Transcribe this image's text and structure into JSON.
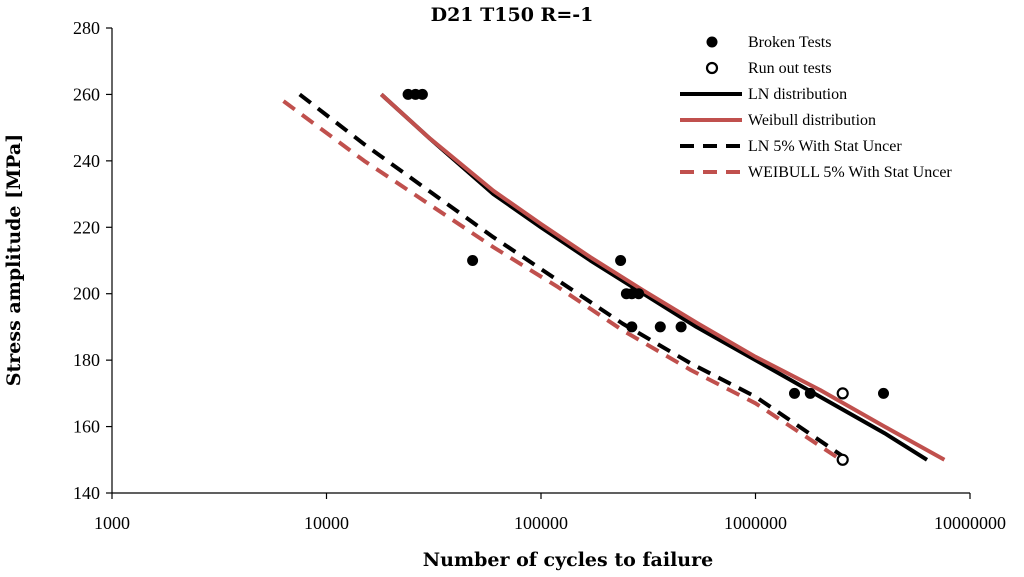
{
  "chart_data": {
    "type": "scatter",
    "title": "D21 T150 R=-1",
    "xlabel": "Number of cycles to failure",
    "ylabel": "Stress amplitude [MPa]",
    "xscale": "log",
    "xlim": [
      1000,
      10000000
    ],
    "ylim": [
      140,
      280
    ],
    "xticks": [
      1000,
      10000,
      100000,
      1000000,
      10000000
    ],
    "xtick_labels": [
      "1000",
      "10000",
      "100000",
      "1000000",
      "10000000"
    ],
    "yticks": [
      140,
      160,
      180,
      200,
      220,
      240,
      260,
      280
    ],
    "ytick_labels": [
      "140",
      "160",
      "180",
      "200",
      "220",
      "240",
      "260",
      "280"
    ],
    "grid": false,
    "legend_position": "top-right",
    "series": [
      {
        "name": "Broken Tests",
        "kind": "markers-filled",
        "color": "#000000",
        "points": [
          [
            24000,
            260
          ],
          [
            26000,
            260
          ],
          [
            28000,
            260
          ],
          [
            48000,
            210
          ],
          [
            235000,
            210
          ],
          [
            250000,
            200
          ],
          [
            265000,
            200
          ],
          [
            285000,
            200
          ],
          [
            265000,
            190
          ],
          [
            360000,
            190
          ],
          [
            450000,
            190
          ],
          [
            1520000,
            170
          ],
          [
            1800000,
            170
          ],
          [
            3950000,
            170
          ]
        ]
      },
      {
        "name": "Run out tests",
        "kind": "markers-open",
        "color": "#000000",
        "points": [
          [
            2550000,
            170
          ],
          [
            2550000,
            150
          ]
        ]
      },
      {
        "name": "LN distribution",
        "kind": "line-solid",
        "color": "#000000",
        "points": [
          [
            18000,
            260
          ],
          [
            30000,
            247
          ],
          [
            60000,
            230
          ],
          [
            100000,
            220
          ],
          [
            170000,
            210
          ],
          [
            300000,
            200
          ],
          [
            530000,
            190
          ],
          [
            1000000,
            180
          ],
          [
            2000000,
            169
          ],
          [
            4000000,
            158
          ],
          [
            6300000,
            150
          ]
        ]
      },
      {
        "name": "Weibull distribution",
        "kind": "line-solid",
        "color": "#c0504d",
        "points": [
          [
            18000,
            260
          ],
          [
            30000,
            247
          ],
          [
            60000,
            231
          ],
          [
            100000,
            221
          ],
          [
            170000,
            211
          ],
          [
            300000,
            201
          ],
          [
            540000,
            191
          ],
          [
            1000000,
            181
          ],
          [
            2000000,
            171
          ],
          [
            4000000,
            160
          ],
          [
            7600000,
            150
          ]
        ]
      },
      {
        "name": "LN 5% With Stat Uncer",
        "kind": "line-dashed",
        "color": "#000000",
        "points": [
          [
            7500,
            260
          ],
          [
            15000,
            245
          ],
          [
            30000,
            231
          ],
          [
            60000,
            217
          ],
          [
            120000,
            204
          ],
          [
            240000,
            191
          ],
          [
            500000,
            179
          ],
          [
            1000000,
            169
          ],
          [
            2700000,
            150
          ]
        ]
      },
      {
        "name": "WEIBULL 5% With Stat Uncer",
        "kind": "line-dashed",
        "color": "#c0504d",
        "points": [
          [
            6300,
            258
          ],
          [
            15000,
            240
          ],
          [
            30000,
            227
          ],
          [
            60000,
            214
          ],
          [
            120000,
            202
          ],
          [
            240000,
            189
          ],
          [
            500000,
            177
          ],
          [
            1000000,
            167
          ],
          [
            2500000,
            150
          ]
        ]
      }
    ]
  }
}
